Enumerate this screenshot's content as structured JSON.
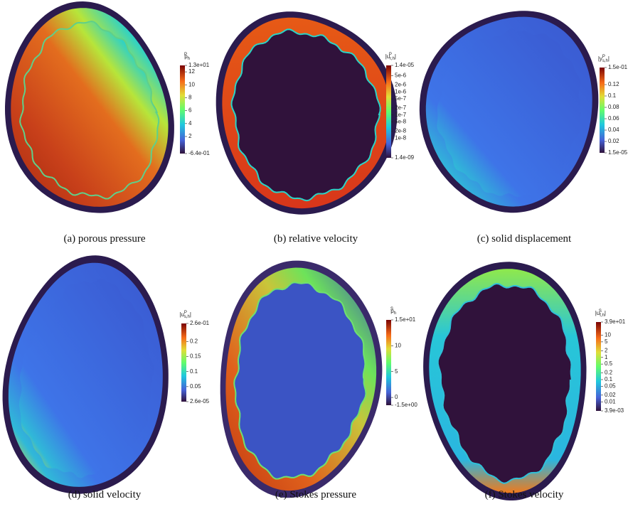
{
  "panels": [
    {
      "caption": "(a) porous pressure",
      "label": {
        "base": "p",
        "sup": "P",
        "sub": "h"
      },
      "scale": "linear",
      "ticks": [
        "1.3e+01",
        "12",
        "10",
        "8",
        "6",
        "4",
        "2",
        "-6.4e-01"
      ]
    },
    {
      "caption": "(b) relative velocity",
      "label": {
        "base": "|u",
        "sup": "P",
        "sub": "r,h",
        "end": "|"
      },
      "scale": "log",
      "ticks": [
        "1.4e-05",
        "5e-6",
        "2e-6",
        "1e-6",
        "5e-7",
        "2e-7",
        "1e-7",
        "5e-8",
        "2e-8",
        "1e-8",
        "1.4e-09"
      ]
    },
    {
      "caption": "(c) solid displacement",
      "label": {
        "base": "|y",
        "sup": "P",
        "sub": "s,h",
        "end": "|"
      },
      "scale": "linear",
      "ticks": [
        "1.5e-01",
        "0.12",
        "0.1",
        "0.08",
        "0.06",
        "0.04",
        "0.02",
        "1.5e-05"
      ]
    },
    {
      "caption": "(d) solid velocity",
      "label": {
        "base": "|u",
        "sup": "P",
        "sub": "s,h",
        "end": "|"
      },
      "scale": "linear",
      "ticks": [
        "2.6e-01",
        "0.2",
        "0.15",
        "0.1",
        "0.05",
        "2.6e-05"
      ]
    },
    {
      "caption": "(e) Stokes pressure",
      "label": {
        "base": "p",
        "sup": "S",
        "sub": "h"
      },
      "scale": "linear",
      "ticks": [
        "1.5e+01",
        "10",
        "5",
        "0",
        "-1.5e+00"
      ]
    },
    {
      "caption": "(f) Stokes velocity",
      "label": {
        "base": "|u",
        "sup": "S",
        "sub": "f,h",
        "end": "|"
      },
      "scale": "log",
      "ticks": [
        "3.9e+01",
        "10",
        "5",
        "2",
        "1",
        "0.5",
        "0.2",
        "0.1",
        "0.05",
        "0.02",
        "0.01",
        "3.9e-03"
      ]
    }
  ]
}
